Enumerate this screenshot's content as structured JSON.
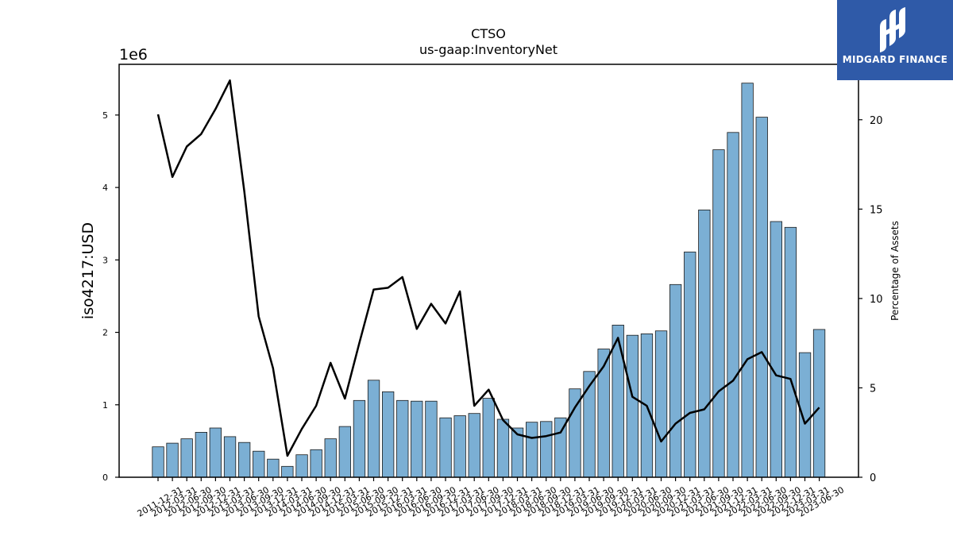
{
  "chart_data": {
    "type": "bar",
    "title": "CTSO",
    "subtitle": "us-gaap:InventoryNet",
    "ylabel": "iso4217:USD",
    "y2label": "Percentage of Assets",
    "y_offset_label": "1e6",
    "ylim": [
      0,
      5700000
    ],
    "y2lim": [
      0,
      23.1
    ],
    "yticks": [
      0,
      1000000,
      2000000,
      3000000,
      4000000,
      5000000
    ],
    "ytick_labels": [
      "0",
      "1",
      "2",
      "3",
      "4",
      "5"
    ],
    "y2ticks": [
      0,
      5,
      10,
      15,
      20
    ],
    "bar_color": "#7bafd4",
    "line_color": "#000000",
    "categories": [
      "2011-12-31",
      "2012-03-31",
      "2012-06-30",
      "2012-09-30",
      "2012-12-31",
      "2013-03-31",
      "2013-06-30",
      "2013-09-30",
      "2013-12-31",
      "2014-03-31",
      "2014-06-30",
      "2014-09-30",
      "2014-12-31",
      "2015-03-31",
      "2015-06-30",
      "2015-09-30",
      "2015-12-31",
      "2016-03-31",
      "2016-06-30",
      "2016-09-30",
      "2016-12-31",
      "2017-03-31",
      "2017-06-30",
      "2017-09-30",
      "2017-12-31",
      "2018-03-31",
      "2018-06-30",
      "2018-09-30",
      "2018-12-31",
      "2019-03-31",
      "2019-06-30",
      "2019-09-30",
      "2019-12-31",
      "2020-03-31",
      "2020-06-30",
      "2020-09-30",
      "2020-12-31",
      "2021-03-31",
      "2021-06-30",
      "2021-09-30",
      "2021-12-31",
      "2022-03-31",
      "2022-06-30",
      "2022-09-30",
      "2022-12-31",
      "2023-03-31",
      "2023-06-30"
    ],
    "series": [
      {
        "type": "bar",
        "axis": "left",
        "values": [
          420000,
          470000,
          530000,
          620000,
          680000,
          560000,
          480000,
          360000,
          250000,
          150000,
          310000,
          380000,
          530000,
          700000,
          1060000,
          1340000,
          1180000,
          1060000,
          1050000,
          1050000,
          820000,
          850000,
          880000,
          1090000,
          800000,
          680000,
          760000,
          770000,
          820000,
          1220000,
          1460000,
          1770000,
          2100000,
          1960000,
          1980000,
          2020000,
          2660000,
          3110000,
          3690000,
          4520000,
          4760000,
          5440000,
          4970000,
          3530000,
          3450000,
          1720000,
          2040000
        ]
      },
      {
        "type": "line",
        "axis": "right",
        "values": [
          20.3,
          16.8,
          18.5,
          19.2,
          20.6,
          22.2,
          16.0,
          9.0,
          6.1,
          1.2,
          2.7,
          4.0,
          6.4,
          4.4,
          7.5,
          10.5,
          10.6,
          11.2,
          8.3,
          9.7,
          8.6,
          10.4,
          4.0,
          4.9,
          3.2,
          2.4,
          2.2,
          2.3,
          2.5,
          3.9,
          5.1,
          6.2,
          7.8,
          4.5,
          4.0,
          2.0,
          3.0,
          3.6,
          3.8,
          4.8,
          5.4,
          6.6,
          7.0,
          5.7,
          5.5,
          3.0,
          3.9
        ]
      }
    ]
  },
  "logo": {
    "text": "MIDGARD FINANCE",
    "background": "#2f5aa8"
  }
}
